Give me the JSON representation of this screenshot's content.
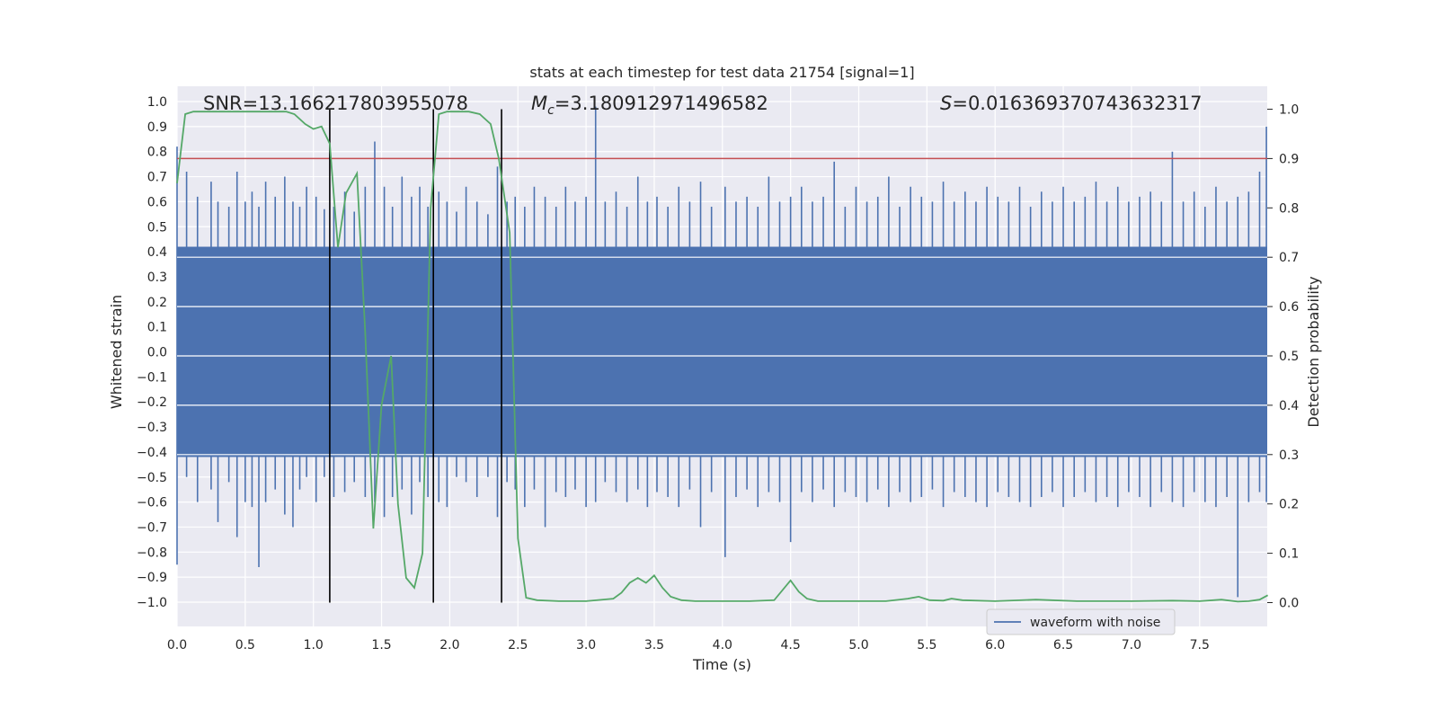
{
  "chart_data": {
    "type": "line",
    "title": "stats at each timestep for test data 21754 [signal=1]",
    "xlabel": "Time (s)",
    "ylabel": "Whitened strain",
    "y2label": "Detection probability",
    "xlim": [
      0.0,
      8.0
    ],
    "ylim": [
      -1.1,
      1.1
    ],
    "y2lim": [
      -0.05,
      1.03
    ],
    "xticks": [
      "0.0",
      "0.5",
      "1.0",
      "1.5",
      "2.0",
      "2.5",
      "3.0",
      "3.5",
      "4.0",
      "4.5",
      "5.0",
      "5.5",
      "6.0",
      "6.5",
      "7.0",
      "7.5"
    ],
    "yticks": [
      "1.0",
      "0.9",
      "0.8",
      "0.7",
      "0.6",
      "0.5",
      "0.4",
      "0.3",
      "0.2",
      "0.1",
      "0.0",
      "−0.1",
      "−0.2",
      "−0.3",
      "−0.4",
      "−0.5",
      "−0.6",
      "−0.7",
      "−0.8",
      "−0.9",
      "−1.0"
    ],
    "y2ticks": [
      "1.0",
      "0.9",
      "0.8",
      "0.7",
      "0.6",
      "0.5",
      "0.4",
      "0.3",
      "0.2",
      "0.1",
      "0.0"
    ],
    "annotations": {
      "snr": "SNR=13.166217803955078",
      "mc_symbol": "M",
      "mc_sub": "c",
      "mc_value": "=3.180912971496582",
      "s_symbol": "S",
      "s_value": "=0.016369370743632317"
    },
    "legend": {
      "label": "waveform with noise",
      "position": "lower-right"
    },
    "threshold": {
      "value": 0.9,
      "axis": "detection_probability",
      "color": "#c44e52"
    },
    "event_lines": [
      1.12,
      1.88,
      2.38
    ],
    "waveform": {
      "name": "waveform with noise",
      "color": "#4c72b0",
      "core_band": [
        -0.42,
        0.42
      ],
      "spikes": [
        [
          0.0,
          0.82,
          -0.85
        ],
        [
          0.07,
          0.72,
          -0.5
        ],
        [
          0.15,
          0.62,
          -0.6
        ],
        [
          0.25,
          0.68,
          -0.55
        ],
        [
          0.3,
          0.6,
          -0.68
        ],
        [
          0.38,
          0.58,
          -0.52
        ],
        [
          0.44,
          0.72,
          -0.74
        ],
        [
          0.5,
          0.6,
          -0.6
        ],
        [
          0.55,
          0.64,
          -0.62
        ],
        [
          0.6,
          0.58,
          -0.86
        ],
        [
          0.65,
          0.68,
          -0.6
        ],
        [
          0.72,
          0.62,
          -0.55
        ],
        [
          0.79,
          0.7,
          -0.65
        ],
        [
          0.85,
          0.6,
          -0.7
        ],
        [
          0.9,
          0.58,
          -0.55
        ],
        [
          0.95,
          0.66,
          -0.5
        ],
        [
          1.02,
          0.62,
          -0.6
        ],
        [
          1.08,
          0.57,
          -0.5
        ],
        [
          1.15,
          0.58,
          -0.58
        ],
        [
          1.23,
          0.64,
          -0.56
        ],
        [
          1.3,
          0.56,
          -0.52
        ],
        [
          1.38,
          0.66,
          -0.58
        ],
        [
          1.45,
          0.84,
          -0.6
        ],
        [
          1.52,
          0.66,
          -0.66
        ],
        [
          1.58,
          0.58,
          -0.58
        ],
        [
          1.65,
          0.7,
          -0.55
        ],
        [
          1.72,
          0.62,
          -0.65
        ],
        [
          1.78,
          0.66,
          -0.52
        ],
        [
          1.84,
          0.58,
          -0.58
        ],
        [
          1.92,
          0.64,
          -0.6
        ],
        [
          1.98,
          0.6,
          -0.62
        ],
        [
          2.05,
          0.56,
          -0.5
        ],
        [
          2.12,
          0.66,
          -0.52
        ],
        [
          2.2,
          0.6,
          -0.58
        ],
        [
          2.28,
          0.55,
          -0.5
        ],
        [
          2.35,
          0.74,
          -0.66
        ],
        [
          2.42,
          0.6,
          -0.52
        ],
        [
          2.48,
          0.62,
          -0.55
        ],
        [
          2.55,
          0.58,
          -0.62
        ],
        [
          2.62,
          0.66,
          -0.55
        ],
        [
          2.7,
          0.62,
          -0.7
        ],
        [
          2.78,
          0.58,
          -0.56
        ],
        [
          2.85,
          0.66,
          -0.58
        ],
        [
          2.92,
          0.6,
          -0.55
        ],
        [
          3.0,
          0.62,
          -0.62
        ],
        [
          3.07,
          0.98,
          -0.6
        ],
        [
          3.14,
          0.6,
          -0.52
        ],
        [
          3.22,
          0.64,
          -0.56
        ],
        [
          3.3,
          0.58,
          -0.6
        ],
        [
          3.38,
          0.7,
          -0.55
        ],
        [
          3.45,
          0.6,
          -0.62
        ],
        [
          3.52,
          0.62,
          -0.56
        ],
        [
          3.6,
          0.58,
          -0.58
        ],
        [
          3.68,
          0.66,
          -0.62
        ],
        [
          3.76,
          0.6,
          -0.55
        ],
        [
          3.84,
          0.68,
          -0.7
        ],
        [
          3.92,
          0.58,
          -0.56
        ],
        [
          4.02,
          0.66,
          -0.82
        ],
        [
          4.1,
          0.6,
          -0.58
        ],
        [
          4.18,
          0.62,
          -0.55
        ],
        [
          4.26,
          0.58,
          -0.62
        ],
        [
          4.34,
          0.7,
          -0.56
        ],
        [
          4.42,
          0.6,
          -0.6
        ],
        [
          4.5,
          0.62,
          -0.76
        ],
        [
          4.58,
          0.66,
          -0.56
        ],
        [
          4.66,
          0.6,
          -0.6
        ],
        [
          4.74,
          0.62,
          -0.55
        ],
        [
          4.82,
          0.76,
          -0.62
        ],
        [
          4.9,
          0.58,
          -0.56
        ],
        [
          4.98,
          0.66,
          -0.58
        ],
        [
          5.06,
          0.6,
          -0.6
        ],
        [
          5.14,
          0.62,
          -0.55
        ],
        [
          5.22,
          0.7,
          -0.62
        ],
        [
          5.3,
          0.58,
          -0.56
        ],
        [
          5.38,
          0.66,
          -0.6
        ],
        [
          5.46,
          0.62,
          -0.58
        ],
        [
          5.54,
          0.6,
          -0.55
        ],
        [
          5.62,
          0.68,
          -0.62
        ],
        [
          5.7,
          0.6,
          -0.56
        ],
        [
          5.78,
          0.64,
          -0.58
        ],
        [
          5.86,
          0.6,
          -0.6
        ],
        [
          5.94,
          0.66,
          -0.62
        ],
        [
          6.02,
          0.62,
          -0.56
        ],
        [
          6.1,
          0.6,
          -0.58
        ],
        [
          6.18,
          0.66,
          -0.6
        ],
        [
          6.26,
          0.58,
          -0.62
        ],
        [
          6.34,
          0.64,
          -0.58
        ],
        [
          6.42,
          0.6,
          -0.56
        ],
        [
          6.5,
          0.66,
          -0.62
        ],
        [
          6.58,
          0.6,
          -0.58
        ],
        [
          6.66,
          0.62,
          -0.56
        ],
        [
          6.74,
          0.68,
          -0.6
        ],
        [
          6.82,
          0.6,
          -0.58
        ],
        [
          6.9,
          0.66,
          -0.62
        ],
        [
          6.98,
          0.6,
          -0.56
        ],
        [
          7.06,
          0.62,
          -0.58
        ],
        [
          7.14,
          0.64,
          -0.62
        ],
        [
          7.22,
          0.6,
          -0.56
        ],
        [
          7.3,
          0.8,
          -0.6
        ],
        [
          7.38,
          0.6,
          -0.62
        ],
        [
          7.46,
          0.64,
          -0.56
        ],
        [
          7.54,
          0.58,
          -0.6
        ],
        [
          7.62,
          0.66,
          -0.62
        ],
        [
          7.7,
          0.6,
          -0.58
        ],
        [
          7.78,
          0.62,
          -0.98
        ],
        [
          7.86,
          0.64,
          -0.6
        ],
        [
          7.94,
          0.72,
          -0.56
        ],
        [
          7.99,
          0.9,
          -0.6
        ]
      ]
    },
    "detection_probability": {
      "name": "detection probability",
      "color": "#55a868",
      "x": [
        0.0,
        0.06,
        0.12,
        0.2,
        0.4,
        0.6,
        0.8,
        0.86,
        0.94,
        1.0,
        1.06,
        1.12,
        1.18,
        1.24,
        1.32,
        1.38,
        1.44,
        1.5,
        1.57,
        1.62,
        1.68,
        1.74,
        1.8,
        1.86,
        1.92,
        1.98,
        2.06,
        2.14,
        2.22,
        2.3,
        2.36,
        2.44,
        2.5,
        2.56,
        2.64,
        2.8,
        3.0,
        3.2,
        3.26,
        3.32,
        3.38,
        3.44,
        3.5,
        3.56,
        3.62,
        3.7,
        3.8,
        4.0,
        4.2,
        4.38,
        4.44,
        4.5,
        4.56,
        4.62,
        4.7,
        4.9,
        5.2,
        5.36,
        5.44,
        5.52,
        5.62,
        5.68,
        5.76,
        6.0,
        6.3,
        6.6,
        7.0,
        7.3,
        7.5,
        7.66,
        7.78,
        7.86,
        7.94,
        8.0
      ],
      "y": [
        0.85,
        0.99,
        0.995,
        0.995,
        0.995,
        0.995,
        0.995,
        0.99,
        0.97,
        0.96,
        0.965,
        0.93,
        0.72,
        0.83,
        0.87,
        0.55,
        0.15,
        0.4,
        0.5,
        0.2,
        0.05,
        0.03,
        0.1,
        0.8,
        0.99,
        0.995,
        0.995,
        0.995,
        0.99,
        0.97,
        0.9,
        0.75,
        0.13,
        0.01,
        0.005,
        0.003,
        0.003,
        0.008,
        0.02,
        0.04,
        0.05,
        0.04,
        0.055,
        0.03,
        0.012,
        0.005,
        0.003,
        0.003,
        0.003,
        0.005,
        0.025,
        0.045,
        0.022,
        0.008,
        0.003,
        0.003,
        0.003,
        0.008,
        0.012,
        0.005,
        0.004,
        0.008,
        0.005,
        0.003,
        0.006,
        0.003,
        0.003,
        0.004,
        0.003,
        0.006,
        0.002,
        0.003,
        0.006,
        0.015
      ]
    }
  }
}
